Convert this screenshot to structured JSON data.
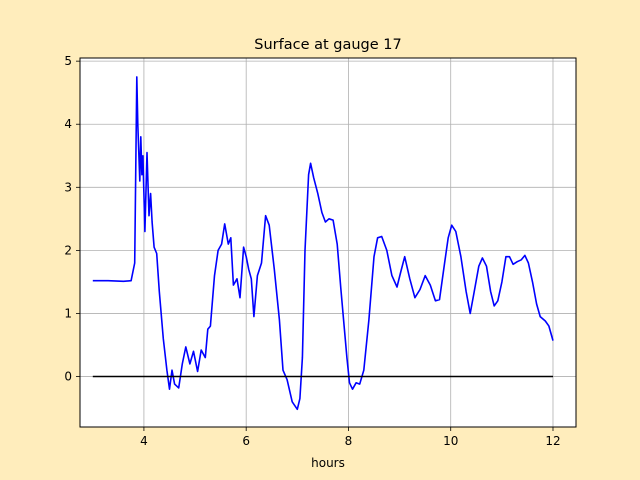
{
  "chart_data": {
    "type": "line",
    "title": "Surface at gauge 17",
    "xlabel": "hours",
    "ylabel": "",
    "xlim": [
      2.75,
      12.45
    ],
    "ylim": [
      -0.8,
      5.05
    ],
    "xticks": [
      4,
      6,
      8,
      10,
      12
    ],
    "yticks": [
      0,
      1,
      2,
      3,
      4,
      5
    ],
    "grid": true,
    "background": "#ffedbc",
    "plot_background": "#ffffff",
    "series": [
      {
        "color": "#0000ff",
        "points": [
          [
            3.0,
            1.52
          ],
          [
            3.3,
            1.52
          ],
          [
            3.6,
            1.51
          ],
          [
            3.75,
            1.52
          ],
          [
            3.82,
            1.8
          ],
          [
            3.86,
            4.75
          ],
          [
            3.88,
            4.0
          ],
          [
            3.92,
            3.1
          ],
          [
            3.94,
            3.8
          ],
          [
            3.96,
            3.2
          ],
          [
            3.98,
            3.5
          ],
          [
            4.02,
            2.3
          ],
          [
            4.06,
            3.55
          ],
          [
            4.1,
            2.55
          ],
          [
            4.13,
            2.9
          ],
          [
            4.16,
            2.45
          ],
          [
            4.2,
            2.05
          ],
          [
            4.25,
            1.95
          ],
          [
            4.3,
            1.35
          ],
          [
            4.38,
            0.6
          ],
          [
            4.45,
            0.1
          ],
          [
            4.5,
            -0.2
          ],
          [
            4.55,
            0.1
          ],
          [
            4.6,
            -0.12
          ],
          [
            4.68,
            -0.18
          ],
          [
            4.75,
            0.2
          ],
          [
            4.82,
            0.47
          ],
          [
            4.9,
            0.2
          ],
          [
            4.97,
            0.4
          ],
          [
            5.05,
            0.08
          ],
          [
            5.12,
            0.42
          ],
          [
            5.2,
            0.3
          ],
          [
            5.25,
            0.75
          ],
          [
            5.3,
            0.8
          ],
          [
            5.38,
            1.6
          ],
          [
            5.45,
            2.0
          ],
          [
            5.52,
            2.1
          ],
          [
            5.58,
            2.42
          ],
          [
            5.65,
            2.1
          ],
          [
            5.7,
            2.2
          ],
          [
            5.75,
            1.45
          ],
          [
            5.82,
            1.55
          ],
          [
            5.88,
            1.25
          ],
          [
            5.95,
            2.05
          ],
          [
            6.0,
            1.9
          ],
          [
            6.05,
            1.7
          ],
          [
            6.1,
            1.55
          ],
          [
            6.15,
            0.95
          ],
          [
            6.22,
            1.6
          ],
          [
            6.3,
            1.8
          ],
          [
            6.38,
            2.55
          ],
          [
            6.45,
            2.4
          ],
          [
            6.55,
            1.7
          ],
          [
            6.65,
            0.9
          ],
          [
            6.72,
            0.1
          ],
          [
            6.8,
            -0.05
          ],
          [
            6.9,
            -0.4
          ],
          [
            7.0,
            -0.52
          ],
          [
            7.05,
            -0.35
          ],
          [
            7.1,
            0.3
          ],
          [
            7.15,
            2.0
          ],
          [
            7.22,
            3.2
          ],
          [
            7.26,
            3.38
          ],
          [
            7.32,
            3.15
          ],
          [
            7.4,
            2.9
          ],
          [
            7.48,
            2.6
          ],
          [
            7.55,
            2.45
          ],
          [
            7.62,
            2.5
          ],
          [
            7.7,
            2.48
          ],
          [
            7.78,
            2.1
          ],
          [
            7.85,
            1.4
          ],
          [
            7.92,
            0.75
          ],
          [
            7.97,
            0.3
          ],
          [
            8.02,
            -0.1
          ],
          [
            8.08,
            -0.2
          ],
          [
            8.15,
            -0.1
          ],
          [
            8.22,
            -0.12
          ],
          [
            8.3,
            0.1
          ],
          [
            8.4,
            0.9
          ],
          [
            8.5,
            1.9
          ],
          [
            8.57,
            2.2
          ],
          [
            8.65,
            2.22
          ],
          [
            8.75,
            2.0
          ],
          [
            8.85,
            1.6
          ],
          [
            8.95,
            1.42
          ],
          [
            9.02,
            1.65
          ],
          [
            9.1,
            1.9
          ],
          [
            9.2,
            1.55
          ],
          [
            9.3,
            1.25
          ],
          [
            9.4,
            1.38
          ],
          [
            9.5,
            1.6
          ],
          [
            9.6,
            1.45
          ],
          [
            9.7,
            1.2
          ],
          [
            9.78,
            1.22
          ],
          [
            9.88,
            1.8
          ],
          [
            9.95,
            2.2
          ],
          [
            10.02,
            2.4
          ],
          [
            10.1,
            2.3
          ],
          [
            10.2,
            1.9
          ],
          [
            10.3,
            1.35
          ],
          [
            10.38,
            1.0
          ],
          [
            10.45,
            1.3
          ],
          [
            10.55,
            1.75
          ],
          [
            10.62,
            1.88
          ],
          [
            10.7,
            1.75
          ],
          [
            10.78,
            1.35
          ],
          [
            10.85,
            1.12
          ],
          [
            10.92,
            1.2
          ],
          [
            11.0,
            1.5
          ],
          [
            11.08,
            1.9
          ],
          [
            11.15,
            1.9
          ],
          [
            11.22,
            1.78
          ],
          [
            11.3,
            1.82
          ],
          [
            11.38,
            1.85
          ],
          [
            11.45,
            1.92
          ],
          [
            11.52,
            1.8
          ],
          [
            11.6,
            1.5
          ],
          [
            11.68,
            1.15
          ],
          [
            11.75,
            0.95
          ],
          [
            11.85,
            0.88
          ],
          [
            11.92,
            0.8
          ],
          [
            12.0,
            0.57
          ]
        ]
      },
      {
        "color": "#000000",
        "points": [
          [
            3.0,
            0.0
          ],
          [
            12.0,
            0.0
          ]
        ]
      }
    ]
  }
}
